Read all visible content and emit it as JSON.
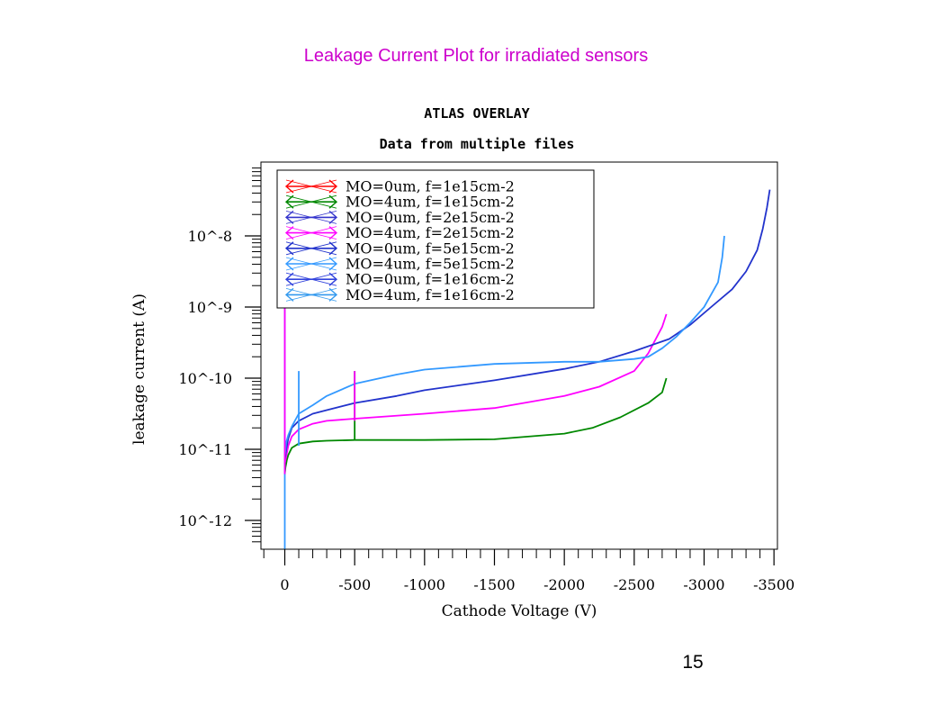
{
  "slide": {
    "title": "Leakage Current Plot for irradiated sensors",
    "page_number": "15"
  },
  "chart_data": {
    "type": "line",
    "title": "ATLAS OVERLAY",
    "subtitle": "Data from multiple files",
    "xlabel": "Cathode Voltage (V)",
    "ylabel": "leakage current (A)",
    "xlim": [
      0,
      -3500
    ],
    "ylim_log10": [
      -12.45,
      -7.0
    ],
    "y_scale": "log",
    "x_ticks": [
      0,
      -500,
      -1000,
      -1500,
      -2000,
      -2500,
      -3000,
      -3500
    ],
    "x_tick_labels": [
      "0",
      "-500",
      "-1000",
      "-1500",
      "-2000",
      "-2500",
      "-3000",
      "-3500"
    ],
    "y_ticks": [
      -8,
      -9,
      -10,
      -11,
      -12
    ],
    "y_tick_labels": [
      "10^-8",
      "10^-9",
      "10^-10",
      "10^-11",
      "10^-12"
    ],
    "legend_position": "top-left",
    "series": [
      {
        "name": "MO=0um, f=1e15cm-2",
        "color": "#ff0000",
        "data": []
      },
      {
        "name": "MO=4um, f=1e15cm-2",
        "color": "#008800",
        "data": [
          [
            0,
            -11.35
          ],
          [
            -5,
            -11.25
          ],
          [
            -10,
            -11.2
          ],
          [
            -15,
            -11.15
          ],
          [
            -25,
            -11.08
          ],
          [
            -50,
            -10.98
          ],
          [
            -100,
            -10.92
          ],
          [
            -200,
            -10.89
          ],
          [
            -300,
            -10.88
          ],
          [
            -500,
            -10.87
          ],
          [
            -1000,
            -10.87
          ],
          [
            -1500,
            -10.86
          ],
          [
            -2000,
            -10.78
          ],
          [
            -2200,
            -10.7
          ],
          [
            -2400,
            -10.55
          ],
          [
            -2600,
            -10.35
          ],
          [
            -2700,
            -10.2
          ],
          [
            -2730,
            -10.0
          ]
        ]
      },
      {
        "name": "MO=0um, f=2e15cm-2",
        "color": "#3333cc",
        "data": []
      },
      {
        "name": "MO=4um, f=2e15cm-2",
        "color": "#ff00ff",
        "data": [
          [
            0,
            -11.2
          ],
          [
            -10,
            -11.1
          ],
          [
            -25,
            -10.95
          ],
          [
            -50,
            -10.82
          ],
          [
            -100,
            -10.72
          ],
          [
            -200,
            -10.64
          ],
          [
            -300,
            -10.6
          ],
          [
            -500,
            -10.57
          ],
          [
            -1000,
            -10.5
          ],
          [
            -1500,
            -10.42
          ],
          [
            -2000,
            -10.25
          ],
          [
            -2250,
            -10.12
          ],
          [
            -2500,
            -9.9
          ],
          [
            -2600,
            -9.65
          ],
          [
            -2700,
            -9.28
          ],
          [
            -2730,
            -9.1
          ]
        ]
      },
      {
        "name": "MO=0um, f=5e15cm-2",
        "color": "#2233cc",
        "data": [
          [
            0,
            -11.15
          ],
          [
            -10,
            -11.0
          ],
          [
            -25,
            -10.85
          ],
          [
            -50,
            -10.7
          ],
          [
            -100,
            -10.6
          ],
          [
            -200,
            -10.5
          ],
          [
            -300,
            -10.45
          ],
          [
            -500,
            -10.35
          ],
          [
            -800,
            -10.25
          ],
          [
            -1000,
            -10.17
          ],
          [
            -1500,
            -10.03
          ],
          [
            -2000,
            -9.87
          ],
          [
            -2250,
            -9.77
          ],
          [
            -2500,
            -9.62
          ],
          [
            -2750,
            -9.45
          ],
          [
            -2900,
            -9.25
          ],
          [
            -3050,
            -9.0
          ],
          [
            -3200,
            -8.75
          ],
          [
            -3300,
            -8.5
          ],
          [
            -3380,
            -8.2
          ],
          [
            -3420,
            -7.9
          ],
          [
            -3450,
            -7.6
          ],
          [
            -3470,
            -7.35
          ]
        ]
      },
      {
        "name": "MO=4um, f=5e15cm-2",
        "color": "#3399ff",
        "data": [
          [
            0,
            -11.1
          ],
          [
            -10,
            -10.9
          ],
          [
            -25,
            -10.8
          ],
          [
            -50,
            -10.68
          ],
          [
            -100,
            -10.5
          ],
          [
            -200,
            -10.38
          ],
          [
            -300,
            -10.25
          ],
          [
            -500,
            -10.08
          ],
          [
            -800,
            -9.95
          ],
          [
            -1000,
            -9.88
          ],
          [
            -1500,
            -9.8
          ],
          [
            -2000,
            -9.77
          ],
          [
            -2250,
            -9.77
          ],
          [
            -2500,
            -9.73
          ],
          [
            -2600,
            -9.7
          ],
          [
            -2700,
            -9.58
          ],
          [
            -2800,
            -9.42
          ],
          [
            -2900,
            -9.22
          ],
          [
            -3000,
            -9.0
          ],
          [
            -3100,
            -8.65
          ],
          [
            -3130,
            -8.3
          ],
          [
            -3145,
            -8.0
          ]
        ]
      },
      {
        "name": "MO=0um, f=1e16cm-2",
        "color": "#3344dd",
        "data": []
      },
      {
        "name": "MO=4um, f=1e16cm-2",
        "color": "#3399ee",
        "data": []
      }
    ],
    "spikes": [
      {
        "x": 0,
        "y_from": -12.4,
        "y_to": -9.0,
        "color": "#3399ff"
      },
      {
        "x": 0,
        "y_from": -11.35,
        "y_to": -8.95,
        "color": "#ff00ff"
      },
      {
        "x": -100,
        "y_from": -10.95,
        "y_to": -9.9,
        "color": "#3399ff"
      },
      {
        "x": -500,
        "y_from": -10.88,
        "y_to": -9.9,
        "color": "#008800"
      },
      {
        "x": -500,
        "y_from": -10.6,
        "y_to": -9.9,
        "color": "#ff00ff"
      }
    ]
  }
}
